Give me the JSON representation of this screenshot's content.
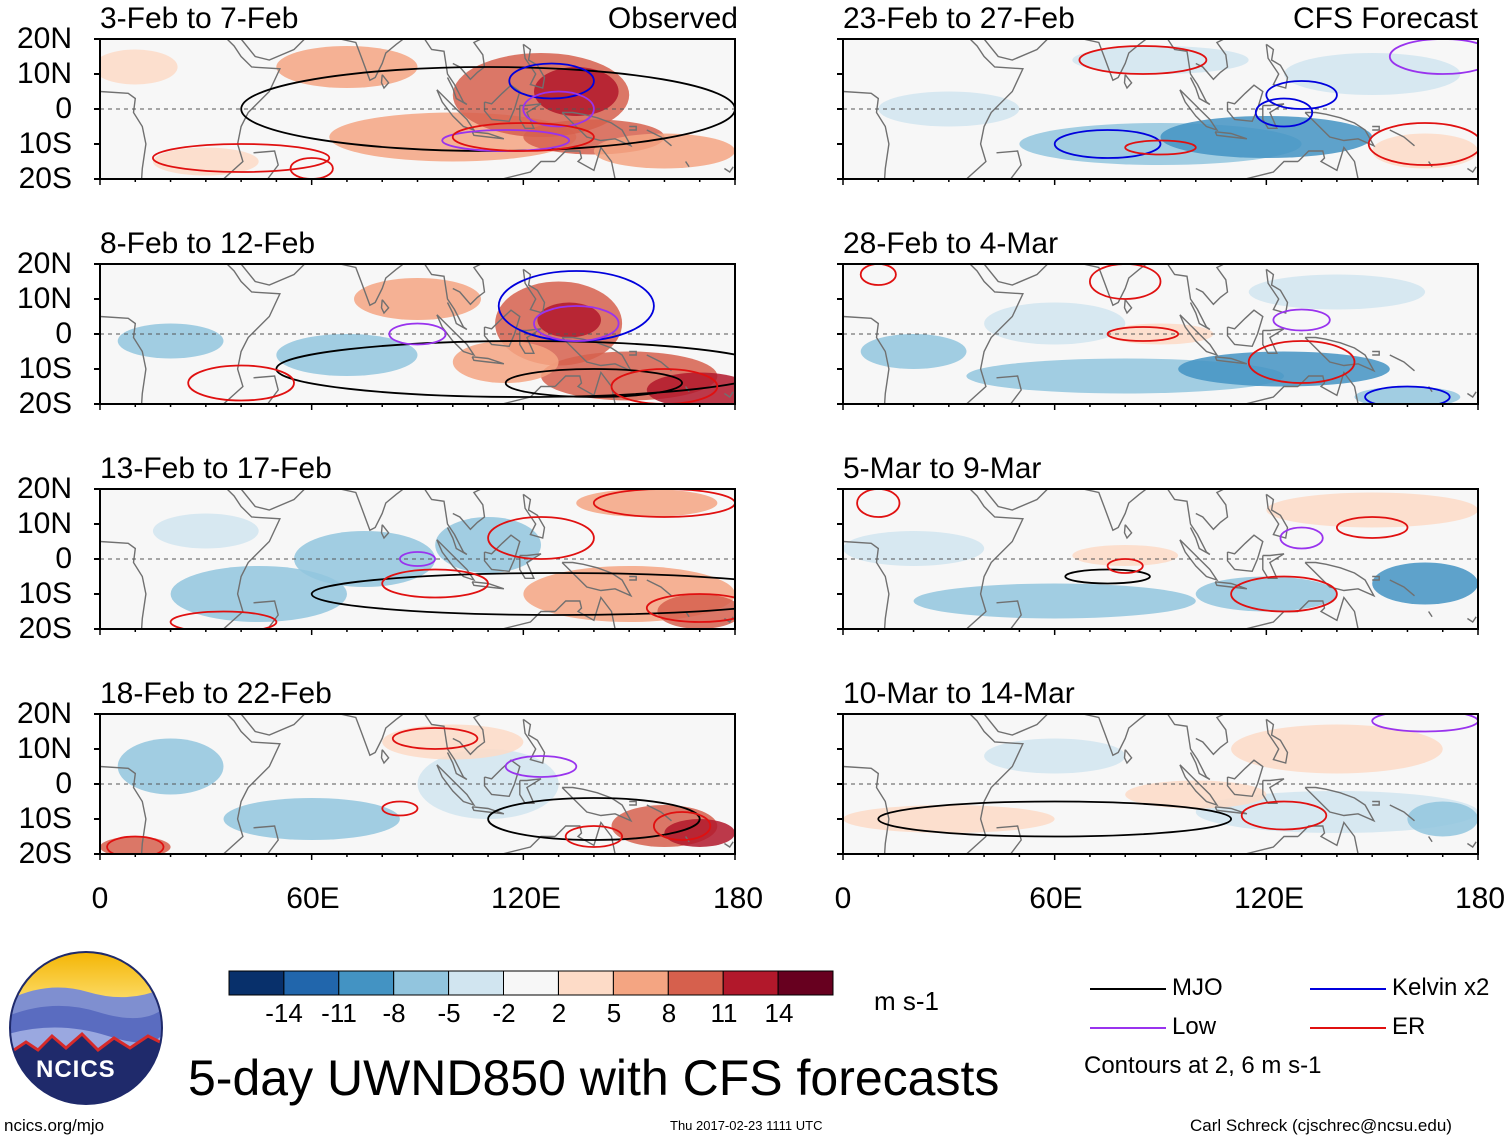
{
  "figure": {
    "title": "5-day UWND850 with CFS forecasts",
    "variable": "UWND850",
    "units": "m s-1",
    "website": "ncics.org/mjo",
    "timestamp": "Thu 2017-02-23 1111 UTC",
    "author": "Carl Schreck (cjschrec@ncsu.edu)",
    "logo_text": "NCICS"
  },
  "columns": {
    "observed_tag": "Observed",
    "forecast_tag": "CFS Forecast"
  },
  "panels": {
    "observed": [
      {
        "period": "3-Feb to 7-Feb"
      },
      {
        "period": "8-Feb to 12-Feb"
      },
      {
        "period": "13-Feb to 17-Feb"
      },
      {
        "period": "18-Feb to 22-Feb"
      }
    ],
    "forecast": [
      {
        "period": "23-Feb to 27-Feb"
      },
      {
        "period": "28-Feb to 4-Mar"
      },
      {
        "period": "5-Mar to 9-Mar"
      },
      {
        "period": "10-Mar to 14-Mar"
      }
    ]
  },
  "axes": {
    "lat_ticks": [
      "20N",
      "10N",
      "0",
      "10S",
      "20S"
    ],
    "lat_range": [
      -20,
      20
    ],
    "lon_ticks": [
      "0",
      "60E",
      "120E",
      "180"
    ],
    "lon_range": [
      0,
      180
    ]
  },
  "colorbar": {
    "labels": [
      "-14",
      "-11",
      "-8",
      "-5",
      "-2",
      "2",
      "5",
      "8",
      "11",
      "14"
    ],
    "colors": [
      "#08306b",
      "#2166ac",
      "#4393c3",
      "#92c5de",
      "#d1e5f0",
      "#f7f7f7",
      "#fddbc7",
      "#f4a582",
      "#d6604d",
      "#b2182b",
      "#67001f"
    ]
  },
  "legend": {
    "items": [
      {
        "label": "MJO",
        "color": "#000000"
      },
      {
        "label": "Kelvin x2",
        "color": "#0000dd"
      },
      {
        "label": "Low",
        "color": "#9933ee"
      },
      {
        "label": "ER",
        "color": "#e01010"
      }
    ],
    "note": "Contours at 2, 6 m s-1"
  }
}
